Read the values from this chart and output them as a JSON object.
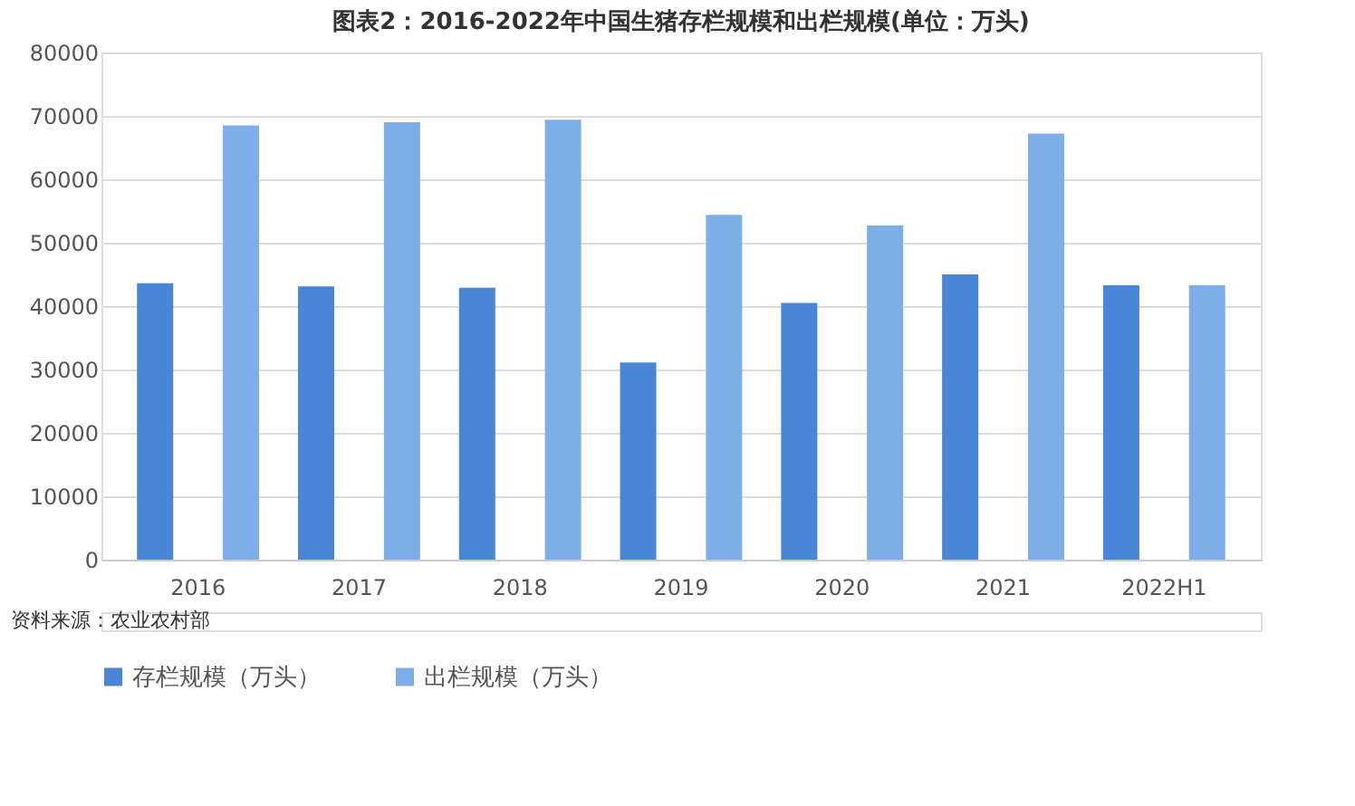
{
  "chart_data": {
    "type": "bar",
    "title": "图表2：2016-2022年中国生猪存栏规模和出栏规模(单位：万头)",
    "categories": [
      "2016",
      "2017",
      "2018",
      "2019",
      "2020",
      "2021",
      "2022H1"
    ],
    "series": [
      {
        "name": "存栏规模（万头）",
        "color": "#4a86d8",
        "values": [
          43600,
          43100,
          42900,
          31100,
          40500,
          45000,
          43300
        ]
      },
      {
        "name": "出栏规模（万头）",
        "color": "#7eaeea",
        "values": [
          68500,
          69000,
          69400,
          54400,
          52700,
          67200,
          43300
        ]
      }
    ],
    "ylim": [
      0,
      80000
    ],
    "yticks": [
      0,
      10000,
      20000,
      30000,
      40000,
      50000,
      60000,
      70000,
      80000
    ],
    "grid": "y",
    "legend": "bottom",
    "annotations": [
      "资料来源：农业农村部"
    ]
  }
}
